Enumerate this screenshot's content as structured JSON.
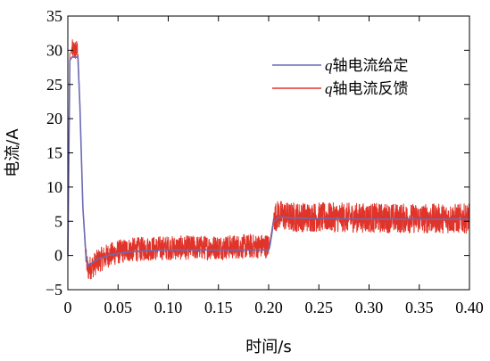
{
  "chart_data": {
    "type": "line",
    "xlabel": "时间/s",
    "ylabel": "电流/A",
    "xlim": [
      0,
      0.4
    ],
    "ylim": [
      -5,
      35
    ],
    "x_ticks": [
      0,
      0.05,
      0.1,
      0.15,
      0.2,
      0.25,
      0.3,
      0.35,
      0.4
    ],
    "x_tick_labels": [
      "0",
      "0.05",
      "0.10",
      "0.15",
      "0.20",
      "0.25",
      "0.30",
      "0.35",
      "0.40"
    ],
    "y_ticks": [
      -5,
      0,
      5,
      10,
      15,
      20,
      25,
      30,
      35
    ],
    "y_tick_labels": [
      "−5",
      "0",
      "5",
      "10",
      "15",
      "20",
      "25",
      "30",
      "35"
    ],
    "grid": false,
    "legend_position": "top-right",
    "series": [
      {
        "name": "q轴电流给定",
        "color": "#6b6bb5",
        "x": [
          0,
          0.002,
          0.004,
          0.01,
          0.012,
          0.015,
          0.018,
          0.02,
          0.025,
          0.03,
          0.04,
          0.05,
          0.06,
          0.08,
          0.1,
          0.15,
          0.2,
          0.201,
          0.203,
          0.205,
          0.21,
          0.215,
          0.22,
          0.25,
          0.3,
          0.35,
          0.4
        ],
        "y": [
          0,
          28.5,
          29.0,
          29.0,
          22.0,
          7.0,
          0.0,
          -1.5,
          -1.0,
          -0.5,
          0.0,
          0.3,
          0.5,
          0.7,
          0.8,
          0.8,
          0.8,
          1.2,
          3.0,
          5.0,
          5.6,
          5.6,
          5.5,
          5.4,
          5.3,
          5.3,
          5.3
        ]
      },
      {
        "name": "q轴电流反馈",
        "color": "#e0342a",
        "x": [
          0,
          0.002,
          0.004,
          0.01,
          0.012,
          0.015,
          0.018,
          0.02,
          0.025,
          0.03,
          0.04,
          0.05,
          0.06,
          0.08,
          0.1,
          0.15,
          0.2,
          0.201,
          0.203,
          0.205,
          0.21,
          0.215,
          0.22,
          0.25,
          0.3,
          0.35,
          0.4
        ],
        "y": [
          0,
          29.5,
          30.0,
          30.0,
          22.0,
          7.0,
          -0.5,
          -2.0,
          -1.5,
          -0.8,
          0.0,
          0.5,
          0.8,
          1.0,
          1.1,
          1.2,
          1.4,
          1.8,
          3.6,
          5.5,
          6.0,
          5.8,
          5.6,
          5.6,
          5.5,
          5.4,
          5.4
        ],
        "noise_band": [
          {
            "x": [
              0.004,
              0.01
            ],
            "amplitude": 1.6
          },
          {
            "x": [
              0.018,
              0.2
            ],
            "amplitude": 1.8
          },
          {
            "x": [
              0.205,
              0.4
            ],
            "amplitude": 2.2
          }
        ]
      }
    ]
  }
}
